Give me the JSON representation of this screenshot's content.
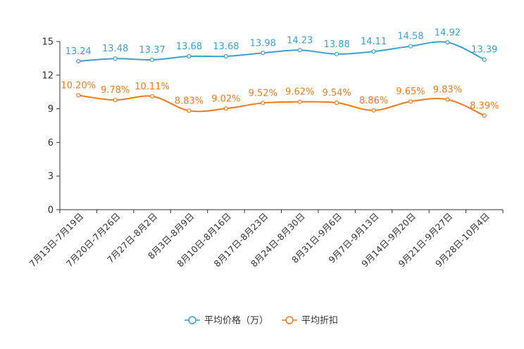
{
  "chart_data": {
    "type": "line",
    "categories": [
      "7月13日-7月19日",
      "7月20日-7月26日",
      "7月27日-8月2日",
      "8月3日-8月9日",
      "8月10日-8月16日",
      "8月17日-8月23日",
      "8月24日-8月30日",
      "8月31日-9月6日",
      "9月7日-9月13日",
      "9月14日-9月20日",
      "9月21日-9月27日",
      "9月28日-10月4日"
    ],
    "series": [
      {
        "name": "平均价格（万）",
        "color": "#3a9fd1",
        "values": [
          13.24,
          13.48,
          13.37,
          13.68,
          13.68,
          13.98,
          14.23,
          13.88,
          14.11,
          14.58,
          14.92,
          13.39
        ],
        "labels": [
          "13.24",
          "13.48",
          "13.37",
          "13.68",
          "13.68",
          "13.98",
          "14.23",
          "13.88",
          "14.11",
          "14.58",
          "14.92",
          "13.39"
        ]
      },
      {
        "name": "平均折扣",
        "color": "#f07a1a",
        "values": [
          10.2,
          9.78,
          10.11,
          8.83,
          9.02,
          9.52,
          9.62,
          9.54,
          8.86,
          9.65,
          9.83,
          8.39
        ],
        "labels": [
          "10.20%",
          "9.78%",
          "10.11%",
          "8.83%",
          "9.02%",
          "9.52%",
          "9.62%",
          "9.54%",
          "8.86%",
          "9.65%",
          "9.83%",
          "8.39%"
        ]
      }
    ],
    "ylim": [
      0,
      15
    ],
    "yticks": [
      0,
      3,
      6,
      9,
      12,
      15
    ],
    "title": "",
    "xlabel": "",
    "ylabel": "",
    "grid": false,
    "legend": "bottom-center"
  }
}
